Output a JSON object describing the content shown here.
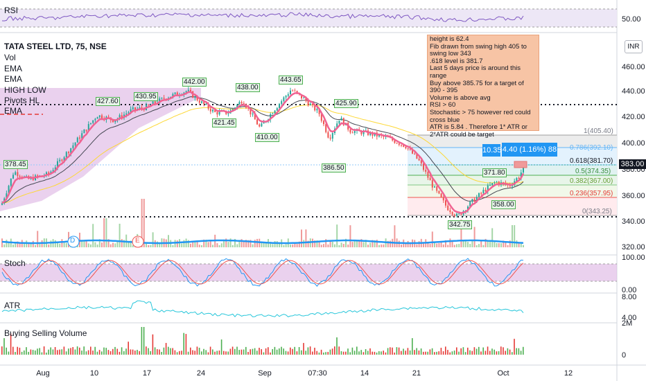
{
  "chart": {
    "title": "TATA STEEL LTD, 75, NSE",
    "currency": "INR",
    "last_price": "383.00",
    "price_ticks": [
      "460.00",
      "440.00",
      "420.00",
      "400.00",
      "380.00",
      "360.00",
      "340.00",
      "320.00"
    ],
    "rsi_tick": "50.00",
    "stoch_ticks": [
      "100.00",
      "0.00"
    ],
    "atr_tick": "8.00",
    "atr_tick2": "4.00",
    "vol_tick": "2M",
    "vol_tick2": "0",
    "x_labels": [
      "Aug",
      "10",
      "17",
      "24",
      "Sep",
      "07:30",
      "14",
      "21",
      "Oct",
      "12"
    ]
  },
  "legend": [
    "Vol",
    "EMA",
    "EMA",
    "HIGH LOW",
    "Pivots HL",
    "EMA"
  ],
  "panes": {
    "rsi": "RSI",
    "stoch": "Stoch",
    "atr": "ATR",
    "volume": "Buying Selling Volume"
  },
  "swing_labels": {
    "l378": "378.45",
    "l427": "427.60",
    "l430": "430.95",
    "l442": "442.00",
    "l438": "438.00",
    "l443": "443.65",
    "l421": "421.45",
    "l410": "410.00",
    "l425": "425.90",
    "l386": "386.50",
    "l371": "371.80",
    "l358": "358.00",
    "l342": "342.75"
  },
  "fib_levels": {
    "f1": "1(405.40)",
    "f786": "0.786(392.10)",
    "f618": "0.618(381.70)",
    "f5": "0.5(374.35)",
    "f382": "0.382(367.00)",
    "f236": "0.236(357.95)",
    "f0": "0(343.25)"
  },
  "measure": {
    "left": "10.35",
    "right": "4.40 (1.16%) 88"
  },
  "markers": {
    "d": "D",
    "e": "E"
  },
  "note": [
    "height is 62.4",
    "Fib drawn from swing high 405 to swing low 343",
    ".618 level is 381.7",
    "Last 5 days price is around this range",
    "Buy above 385.75 for a target of 390 - 395",
    "Volume is above avg",
    "RSI > 60",
    "Stochastic > 75 however red could cross blue",
    "ATR is 5.84 . Therefore 1* ATR or 2*ATR could be target"
  ],
  "colors": {
    "up": "#26a69a",
    "down": "#ef5350",
    "fib_box": "#2196f3",
    "note_bg": "#f7c4a5",
    "purple_zone": "#e1bee7"
  }
}
